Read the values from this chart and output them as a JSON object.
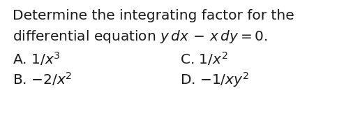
{
  "background_color": "#ffffff",
  "line1": "Determine the integrating factor for the",
  "line2": "differential equation $y\\,dx\\,-\\,x\\,dy=0.$",
  "optA": "A. $1/x^3$",
  "optB": "B. $-2/x^2$",
  "optC": "C. $1/x^2$",
  "optD": "D. $-1/xy^2$",
  "font_size_body": 14.5,
  "font_size_options": 14.5,
  "text_color": "#1a1a1a",
  "fig_width": 5.16,
  "fig_height": 1.86,
  "dpi": 100
}
